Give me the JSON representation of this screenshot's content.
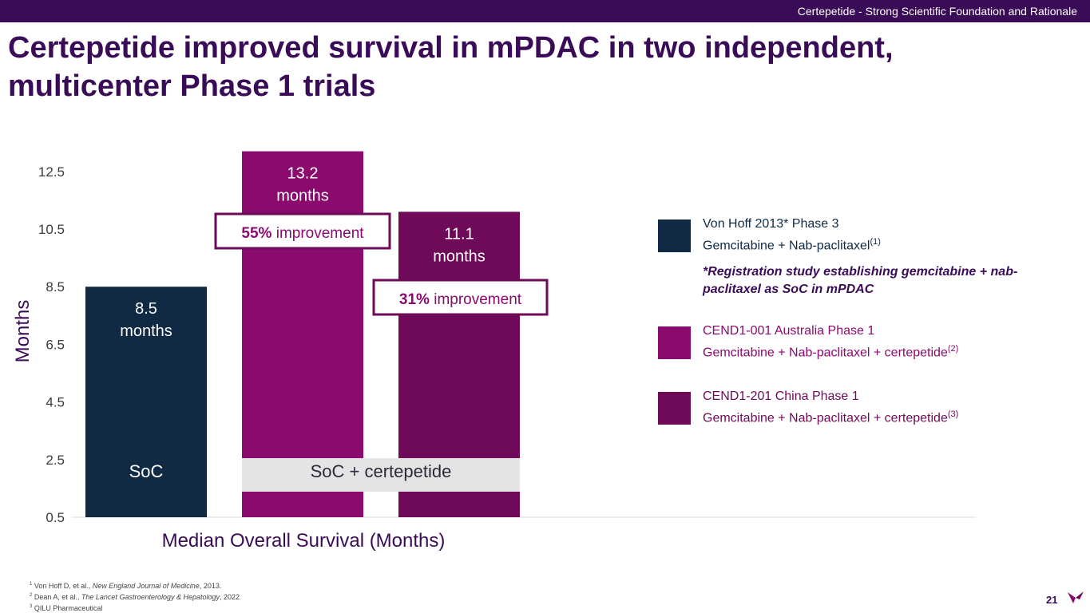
{
  "header": {
    "section": "Certepetide - Strong Scientific Foundation and Rationale"
  },
  "title": "Certepetide improved survival in mPDAC in two independent, multicenter Phase 1 trials",
  "chart_data": {
    "type": "bar",
    "categories": [
      "Von Hoff 2013* Phase 3",
      "CEND1-001 Australia Phase 1",
      "CEND1-201 China Phase 1"
    ],
    "values": [
      8.5,
      13.2,
      11.1
    ],
    "value_labels": [
      [
        "8.5",
        "months"
      ],
      [
        "13.2",
        "months"
      ],
      [
        "11.1",
        "months"
      ]
    ],
    "colors": [
      "#102a44",
      "#8b0a6e",
      "#6e0a57"
    ],
    "y_ticks": [
      "0.5",
      "2.5",
      "4.5",
      "6.5",
      "8.5",
      "10.5",
      "12.5"
    ],
    "ylim": [
      0.5,
      13.5
    ],
    "ylabel": "Months",
    "xlabel": "Median Overall Survival (Months)",
    "group_labels": {
      "soc": "SoC",
      "combo": "SoC + certepetide"
    },
    "annotations": [
      {
        "pct": "55%",
        "text": " improvement",
        "for_bar": 1
      },
      {
        "pct": "31%",
        "text": " improvement",
        "for_bar": 2
      }
    ]
  },
  "legend": [
    {
      "line1": "Von Hoff 2013* Phase 3",
      "line2": "Gemcitabine + Nab-paclitaxel",
      "sup": "(1)",
      "color": "#102a44",
      "text_color": "#102a44"
    },
    {
      "line1": "CEND1-001 Australia Phase 1",
      "line2": "Gemcitabine + Nab-paclitaxel + certepetide",
      "sup": "(2)",
      "color": "#8b0a6e",
      "text_color": "#8b0a6e"
    },
    {
      "line1": "CEND1-201 China Phase 1",
      "line2": "Gemcitabine + Nab-paclitaxel + certepetide",
      "sup": "(3)",
      "color": "#6e0a57",
      "text_color": "#6e0a57"
    }
  ],
  "legend_note": "*Registration study establishing gemcitabine + nab-paclitaxel as SoC in mPDAC",
  "footnotes": [
    {
      "num": "1",
      "before": "Von Hoff D, et al., ",
      "source": "New England Journal of Medicine",
      "after": ", 2013."
    },
    {
      "num": "2",
      "before": "Dean A, et al., ",
      "source": "The Lancet Gastroenterology & Hepatology",
      "after": ", 2022"
    },
    {
      "num": "3",
      "before": "QILU Pharmaceutical",
      "source": "",
      "after": ""
    }
  ],
  "page_number": "21"
}
